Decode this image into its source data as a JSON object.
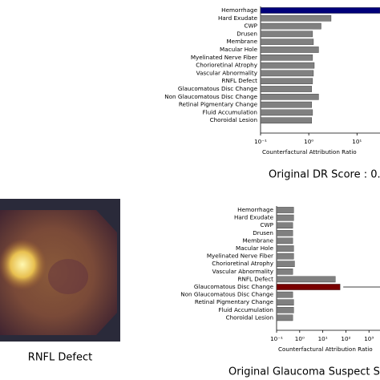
{
  "chart_data": [
    {
      "type": "bar",
      "orientation": "horizontal",
      "log_x": true,
      "categories": [
        "Hemorrhage",
        "Hard Exudate",
        "CWP",
        "Drusen",
        "Membrane",
        "Macular Hole",
        "Myelinated Nerve Fiber",
        "Chorioretinal Atrophy",
        "Vascular Abnormality",
        "RNFL Defect",
        "Glaucomatous Disc Change",
        "Non Glaucomatous Disc Change",
        "Retinal Pigmentary Change",
        "Fluid Accumulation",
        "Choroidal Lesion"
      ],
      "values": [
        30,
        2.9,
        1.8,
        1.2,
        1.25,
        1.6,
        1.2,
        1.3,
        1.25,
        1.2,
        1.15,
        1.6,
        1.15,
        1.2,
        1.15
      ],
      "colors": [
        "#00007a",
        "#808080",
        "#808080",
        "#808080",
        "#808080",
        "#808080",
        "#808080",
        "#808080",
        "#808080",
        "#808080",
        "#808080",
        "#808080",
        "#808080",
        "#808080",
        "#808080"
      ],
      "xlim": [
        0.1,
        30
      ],
      "xticks": [
        {
          "value": 0.1,
          "label": "10⁻¹"
        },
        {
          "value": 1,
          "label": "10⁰"
        },
        {
          "value": 10,
          "label": "10¹"
        }
      ],
      "xlabel": "Counterfactural Attribution Ratio",
      "caption": "Original DR Score : 0."
    },
    {
      "type": "bar",
      "orientation": "horizontal",
      "log_x": true,
      "categories": [
        "Hemorrhage",
        "Hard Exudate",
        "CWP",
        "Drusen",
        "Membrane",
        "Macular Hole",
        "Myelinated Nerve Fiber",
        "Chorioretinal Atrophy",
        "Vascular Abnormality",
        "RNFL Defect",
        "Glaucomatous Disc Change",
        "Non Glaucomatous Disc Change",
        "Retinal Pigmentary Change",
        "Fluid Accumulation",
        "Choroidal Lesion"
      ],
      "values": [
        0.55,
        0.55,
        0.5,
        0.5,
        0.5,
        0.55,
        0.55,
        0.6,
        0.5,
        35,
        56,
        0.5,
        0.55,
        0.55,
        0.5
      ],
      "colors": [
        "#808080",
        "#808080",
        "#808080",
        "#808080",
        "#808080",
        "#808080",
        "#808080",
        "#808080",
        "#808080",
        "#808080",
        "#7a0000",
        "#808080",
        "#808080",
        "#808080",
        "#808080"
      ],
      "xlim": [
        0.1,
        3000
      ],
      "xticks": [
        {
          "value": 0.1,
          "label": "10⁻¹"
        },
        {
          "value": 1,
          "label": "10⁰"
        },
        {
          "value": 10,
          "label": "10¹"
        },
        {
          "value": 100,
          "label": "10²"
        },
        {
          "value": 1000,
          "label": "10³"
        }
      ],
      "xlabel": "Counterfactural Attribution Ratio",
      "caption": "Original Glaucoma Suspect Sc"
    }
  ],
  "image": {
    "label": "RNFL Defect"
  }
}
